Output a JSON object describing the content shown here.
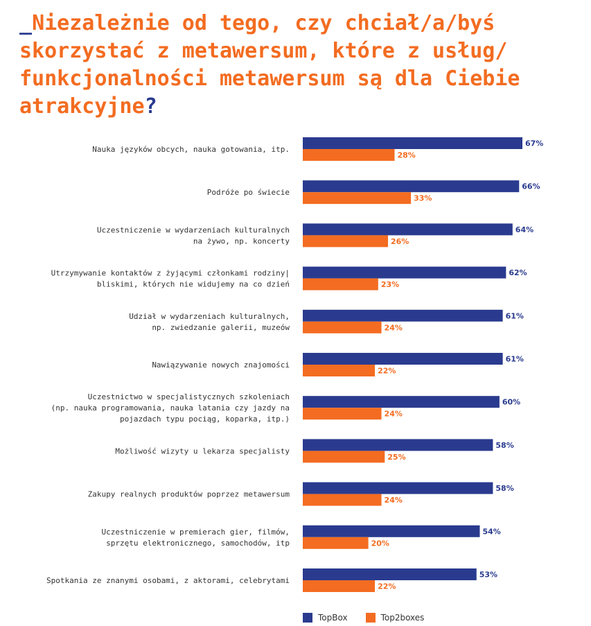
{
  "title": {
    "prefix": "_",
    "text": "Niezależnie od tego, czy chciał/a/byś skorzystać z metawersum, które z usług/ funkcjonalności metawersum są dla Ciebie atrakcyjne",
    "suffix": "?"
  },
  "colors": {
    "topbox": "#2a3b8f",
    "top2boxes": "#f36c21"
  },
  "chart_data": {
    "type": "bar",
    "orientation": "horizontal",
    "value_format": "percent",
    "xlim": [
      0,
      70
    ],
    "grid": false,
    "legend_position": "bottom",
    "categories": [
      [
        "Nauka języków obcych, nauka gotowania, itp."
      ],
      [
        "Podróże po świecie"
      ],
      [
        "Uczestniczenie w wydarzeniach kulturalnych",
        "na żywo, np. koncerty"
      ],
      [
        "Utrzymywanie kontaktów z żyjącymi członkami rodziny|",
        "bliskimi, których nie widujemy na co dzień"
      ],
      [
        "Udział w wydarzeniach kulturalnych,",
        "np. zwiedzanie galerii, muzeów"
      ],
      [
        "Nawiązywanie nowych znajomości"
      ],
      [
        "Uczestnictwo w specjalistycznych szkoleniach",
        "(np. nauka programowania, nauka latania czy jazdy na",
        "pojazdach typu pociąg, koparka, itp.)"
      ],
      [
        "Możliwość wizyty u lekarza specjalisty"
      ],
      [
        "Zakupy realnych produktów poprzez metawersum"
      ],
      [
        "Uczestniczenie w premierach gier, filmów,",
        "sprzętu elektronicznego, samochodów, itp"
      ],
      [
        "Spotkania ze znanymi osobami, z aktorami, celebrytami"
      ]
    ],
    "series": [
      {
        "name": "TopBox",
        "values": [
          67,
          66,
          64,
          62,
          61,
          61,
          60,
          58,
          58,
          54,
          53
        ]
      },
      {
        "name": "Top2boxes",
        "values": [
          28,
          33,
          26,
          23,
          24,
          22,
          24,
          25,
          24,
          20,
          22
        ]
      }
    ]
  }
}
